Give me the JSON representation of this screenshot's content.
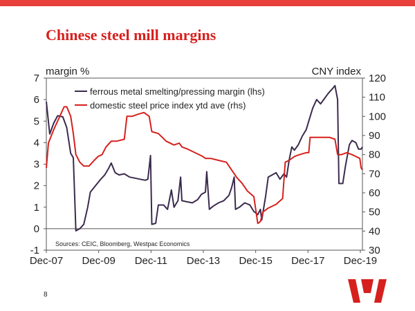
{
  "slide": {
    "title": "Chinese steel mill margins",
    "page_number": "8",
    "accent_color": "#d6201d",
    "logo_icon": "westpac-w-icon"
  },
  "chart_data": {
    "type": "line",
    "title": "Chinese steel mill margins",
    "ylabel_left": "margin %",
    "ylabel_right": "CNY index",
    "ylim_left": [
      -1,
      7
    ],
    "ylim_right": [
      30,
      120
    ],
    "xlim": [
      2007.92,
      2020.0
    ],
    "yticks_left": [
      "-1",
      "0",
      "1",
      "2",
      "3",
      "4",
      "5",
      "6",
      "7"
    ],
    "yticks_right": [
      "30",
      "40",
      "50",
      "60",
      "70",
      "80",
      "90",
      "100",
      "110",
      "120"
    ],
    "xticks": [
      {
        "label": "Dec-07",
        "x": 2007.92
      },
      {
        "label": "Dec-09",
        "x": 2009.92
      },
      {
        "label": "Dec-11",
        "x": 2011.92
      },
      {
        "label": "Dec-13",
        "x": 2013.92
      },
      {
        "label": "Dec-15",
        "x": 2015.92
      },
      {
        "label": "Dec-17",
        "x": 2017.92
      },
      {
        "label": "Dec-19",
        "x": 2019.92
      }
    ],
    "source": "Sources: CEIC, Bloomberg, Westpac Economics",
    "series": [
      {
        "name": "ferrous metal smelting/pressing margin (lhs)",
        "axis": "left",
        "color": "#3b2a4d",
        "points": [
          [
            2007.92,
            5.9
          ],
          [
            2008.05,
            4.4
          ],
          [
            2008.2,
            4.9
          ],
          [
            2008.35,
            5.25
          ],
          [
            2008.55,
            5.2
          ],
          [
            2008.7,
            4.7
          ],
          [
            2008.85,
            3.5
          ],
          [
            2008.95,
            3.3
          ],
          [
            2009.05,
            -0.1
          ],
          [
            2009.2,
            0.0
          ],
          [
            2009.35,
            0.2
          ],
          [
            2009.5,
            1.0
          ],
          [
            2009.6,
            1.7
          ],
          [
            2009.8,
            2.0
          ],
          [
            2010.0,
            2.3
          ],
          [
            2010.15,
            2.5
          ],
          [
            2010.3,
            2.8
          ],
          [
            2010.4,
            3.05
          ],
          [
            2010.55,
            2.6
          ],
          [
            2010.7,
            2.5
          ],
          [
            2010.9,
            2.55
          ],
          [
            2011.1,
            2.4
          ],
          [
            2011.3,
            2.35
          ],
          [
            2011.5,
            2.3
          ],
          [
            2011.7,
            2.25
          ],
          [
            2011.8,
            2.3
          ],
          [
            2011.9,
            3.4
          ],
          [
            2011.95,
            0.2
          ],
          [
            2012.1,
            0.25
          ],
          [
            2012.2,
            1.1
          ],
          [
            2012.4,
            1.1
          ],
          [
            2012.55,
            0.9
          ],
          [
            2012.7,
            1.8
          ],
          [
            2012.8,
            1.0
          ],
          [
            2012.95,
            1.3
          ],
          [
            2013.05,
            2.4
          ],
          [
            2013.1,
            1.3
          ],
          [
            2013.3,
            1.25
          ],
          [
            2013.5,
            1.2
          ],
          [
            2013.7,
            1.35
          ],
          [
            2013.85,
            1.6
          ],
          [
            2014.0,
            1.7
          ],
          [
            2014.05,
            2.65
          ],
          [
            2014.15,
            0.9
          ],
          [
            2014.3,
            1.05
          ],
          [
            2014.5,
            1.2
          ],
          [
            2014.7,
            1.3
          ],
          [
            2014.9,
            1.55
          ],
          [
            2015.0,
            1.9
          ],
          [
            2015.1,
            2.4
          ],
          [
            2015.15,
            0.9
          ],
          [
            2015.3,
            1.0
          ],
          [
            2015.5,
            1.2
          ],
          [
            2015.7,
            1.1
          ],
          [
            2015.85,
            0.8
          ],
          [
            2016.0,
            0.65
          ],
          [
            2016.1,
            0.9
          ],
          [
            2016.15,
            0.4
          ],
          [
            2016.3,
            1.5
          ],
          [
            2016.4,
            2.4
          ],
          [
            2016.55,
            2.5
          ],
          [
            2016.7,
            2.6
          ],
          [
            2016.85,
            2.3
          ],
          [
            2017.0,
            2.55
          ],
          [
            2017.1,
            2.4
          ],
          [
            2017.2,
            3.2
          ],
          [
            2017.3,
            3.8
          ],
          [
            2017.4,
            3.65
          ],
          [
            2017.55,
            3.9
          ],
          [
            2017.7,
            4.3
          ],
          [
            2017.85,
            4.6
          ],
          [
            2017.95,
            5.0
          ],
          [
            2018.1,
            5.6
          ],
          [
            2018.25,
            6.0
          ],
          [
            2018.4,
            5.8
          ],
          [
            2018.55,
            6.05
          ],
          [
            2018.7,
            6.3
          ],
          [
            2018.85,
            6.5
          ],
          [
            2018.95,
            6.65
          ],
          [
            2019.05,
            6.0
          ],
          [
            2019.1,
            2.1
          ],
          [
            2019.25,
            2.1
          ],
          [
            2019.35,
            2.9
          ],
          [
            2019.5,
            3.9
          ],
          [
            2019.6,
            4.1
          ],
          [
            2019.75,
            4.0
          ],
          [
            2019.85,
            3.7
          ],
          [
            2019.95,
            3.7
          ],
          [
            2020.0,
            3.8
          ]
        ]
      },
      {
        "name": "domestic steel price index ytd ave (rhs)",
        "axis": "right",
        "color": "#d6201d",
        "points": [
          [
            2007.92,
            73
          ],
          [
            2008.0,
            86
          ],
          [
            2008.2,
            93
          ],
          [
            2008.4,
            99
          ],
          [
            2008.6,
            105
          ],
          [
            2008.7,
            105
          ],
          [
            2008.85,
            100
          ],
          [
            2008.95,
            91
          ],
          [
            2009.05,
            80
          ],
          [
            2009.2,
            76
          ],
          [
            2009.35,
            74
          ],
          [
            2009.55,
            74
          ],
          [
            2009.75,
            77
          ],
          [
            2009.9,
            79
          ],
          [
            2010.05,
            80
          ],
          [
            2010.2,
            84
          ],
          [
            2010.4,
            87
          ],
          [
            2010.6,
            87
          ],
          [
            2010.9,
            88
          ],
          [
            2011.0,
            100
          ],
          [
            2011.2,
            100
          ],
          [
            2011.4,
            101
          ],
          [
            2011.65,
            102
          ],
          [
            2011.85,
            100
          ],
          [
            2011.95,
            92
          ],
          [
            2012.2,
            91
          ],
          [
            2012.5,
            87
          ],
          [
            2012.8,
            85
          ],
          [
            2013.0,
            86
          ],
          [
            2013.1,
            84
          ],
          [
            2013.3,
            83
          ],
          [
            2013.6,
            81
          ],
          [
            2013.9,
            79
          ],
          [
            2014.0,
            78
          ],
          [
            2014.2,
            78
          ],
          [
            2014.5,
            77
          ],
          [
            2014.8,
            76
          ],
          [
            2015.0,
            72
          ],
          [
            2015.2,
            68
          ],
          [
            2015.4,
            65
          ],
          [
            2015.6,
            61
          ],
          [
            2015.85,
            58
          ],
          [
            2016.0,
            44
          ],
          [
            2016.1,
            45
          ],
          [
            2016.2,
            50
          ],
          [
            2016.4,
            52
          ],
          [
            2016.7,
            54
          ],
          [
            2016.95,
            57
          ],
          [
            2017.05,
            76
          ],
          [
            2017.2,
            77
          ],
          [
            2017.4,
            79
          ],
          [
            2017.6,
            80
          ],
          [
            2017.85,
            81
          ],
          [
            2017.95,
            81
          ],
          [
            2018.0,
            89
          ],
          [
            2018.2,
            89
          ],
          [
            2018.5,
            89
          ],
          [
            2018.75,
            89
          ],
          [
            2018.95,
            88
          ],
          [
            2019.05,
            80
          ],
          [
            2019.2,
            80
          ],
          [
            2019.4,
            81
          ],
          [
            2019.6,
            80
          ],
          [
            2019.75,
            79
          ],
          [
            2019.9,
            78
          ],
          [
            2019.95,
            73
          ],
          [
            2020.0,
            72
          ]
        ]
      }
    ]
  }
}
